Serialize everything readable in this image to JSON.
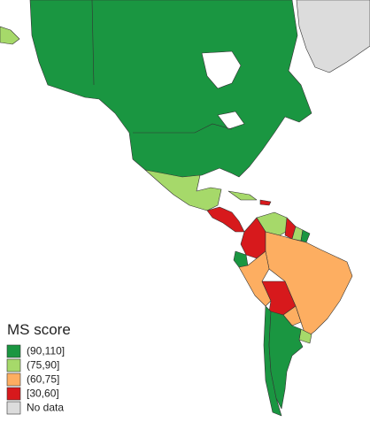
{
  "legend": {
    "title": "MS score",
    "items": [
      {
        "label": "(90,110]",
        "color": "#1a9641"
      },
      {
        "label": "(75,90]",
        "color": "#a6d96a"
      },
      {
        "label": "(60,75]",
        "color": "#fdae61"
      },
      {
        "label": "[30,60]",
        "color": "#d7191c"
      },
      {
        "label": "No data",
        "color": "#dcdcdc"
      }
    ]
  }
}
